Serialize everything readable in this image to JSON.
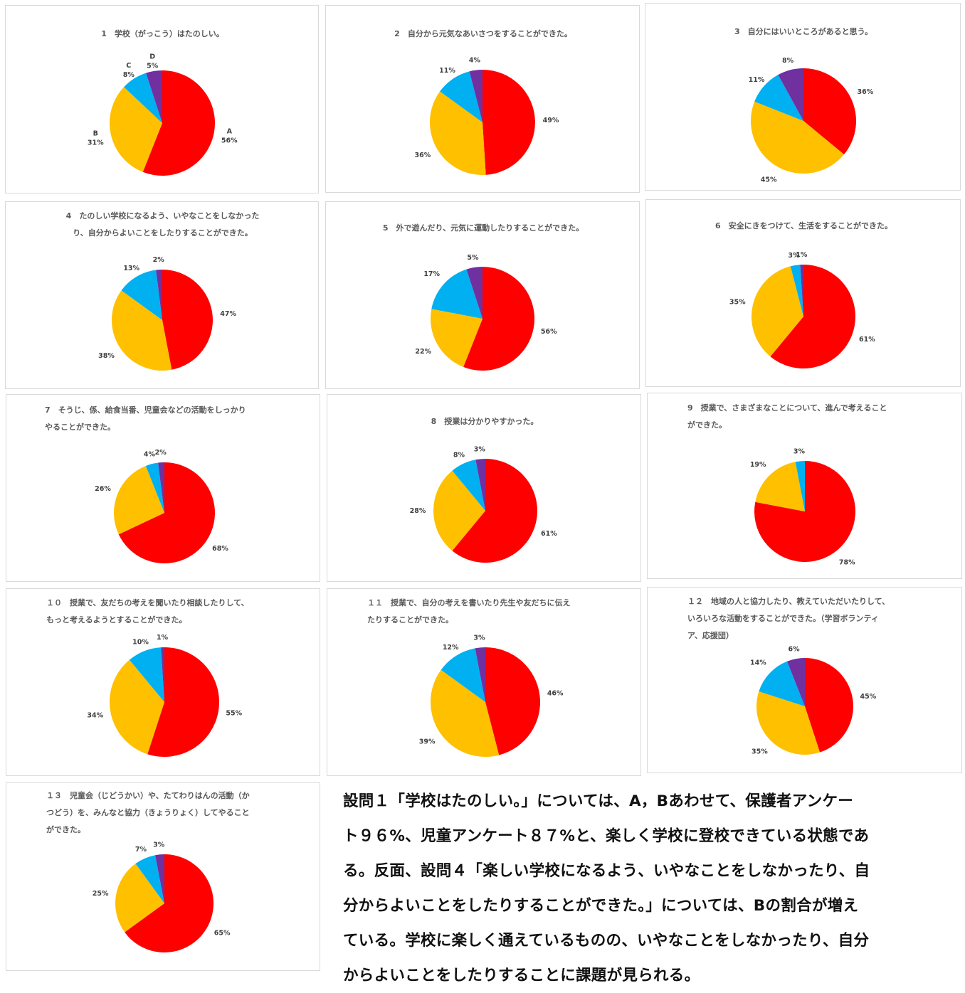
{
  "colors": {
    "A": "#ff0000",
    "B": "#ffc000",
    "C": "#00b0f0",
    "D": "#7030a0"
  },
  "chart_data": [
    {
      "type": "pie",
      "title_lines": [
        "1　学校（がっこう）はたのしい。"
      ],
      "categories": [
        "A",
        "B",
        "C",
        "D"
      ],
      "values": [
        56,
        31,
        8,
        5
      ],
      "labels": [
        "A\n56%",
        "B\n31%",
        "C\n8%",
        "D\n5%"
      ]
    },
    {
      "type": "pie",
      "title_lines": [
        "2　自分から元気なあいさつをすることができた。"
      ],
      "categories": [
        "A",
        "B",
        "C",
        "D"
      ],
      "values": [
        49,
        36,
        11,
        4
      ],
      "labels": [
        "49%",
        "36%",
        "11%",
        "4%"
      ]
    },
    {
      "type": "pie",
      "title_lines": [
        "3　自分にはいいところがあると思う。"
      ],
      "categories": [
        "A",
        "B",
        "C",
        "D"
      ],
      "values": [
        36,
        45,
        11,
        8
      ],
      "labels": [
        "36%",
        "45%",
        "11%",
        "8%"
      ]
    },
    {
      "type": "pie",
      "title_lines": [
        "4　たのしい学校になるよう、いやなことをしなかった",
        "り、自分からよいことをしたりすることができた。"
      ],
      "categories": [
        "A",
        "B",
        "C",
        "D"
      ],
      "values": [
        47,
        38,
        13,
        2
      ],
      "labels": [
        "47%",
        "38%",
        "13%",
        "2%"
      ]
    },
    {
      "type": "pie",
      "title_lines": [
        "5　外で遊んだり、元気に運動したりすることができた。"
      ],
      "categories": [
        "A",
        "B",
        "C",
        "D"
      ],
      "values": [
        56,
        22,
        17,
        5
      ],
      "labels": [
        "56%",
        "22%",
        "17%",
        "5%"
      ]
    },
    {
      "type": "pie",
      "title_lines": [
        "6　安全にきをつけて、生活をすることができた。"
      ],
      "categories": [
        "A",
        "B",
        "C",
        "D"
      ],
      "values": [
        61,
        35,
        3,
        1
      ],
      "labels": [
        "61%",
        "35%",
        "3%",
        "1%"
      ]
    },
    {
      "type": "pie",
      "title_lines": [
        "7　そうじ、係、給食当番、児童会などの活動をしっかり",
        "やることができた。"
      ],
      "categories": [
        "A",
        "B",
        "C",
        "D"
      ],
      "values": [
        68,
        26,
        4,
        2
      ],
      "labels": [
        "68%",
        "26%",
        "4%",
        "2%"
      ]
    },
    {
      "type": "pie",
      "title_lines": [
        "8　授業は分かりやすかった。"
      ],
      "categories": [
        "A",
        "B",
        "C",
        "D"
      ],
      "values": [
        61,
        28,
        8,
        3
      ],
      "labels": [
        "61%",
        "28%",
        "8%",
        "3%"
      ]
    },
    {
      "type": "pie",
      "title_lines": [
        "9　授業で、さまざまなことについて、進んで考えること",
        "ができた。"
      ],
      "categories": [
        "A",
        "B",
        "C",
        "D"
      ],
      "values": [
        78,
        19,
        3,
        0
      ],
      "labels": [
        "78%",
        "19%",
        "3%",
        ""
      ]
    },
    {
      "type": "pie",
      "title_lines": [
        "１０　授業で、友だちの考えを聞いたり相談したりして、",
        "もっと考えるようとすることができた。"
      ],
      "categories": [
        "A",
        "B",
        "C",
        "D"
      ],
      "values": [
        55,
        34,
        10,
        1
      ],
      "labels": [
        "55%",
        "34%",
        "10%",
        "1%"
      ]
    },
    {
      "type": "pie",
      "title_lines": [
        "１１　授業で、自分の考えを書いたり先生や友だちに伝え",
        "たりすることができた。"
      ],
      "categories": [
        "A",
        "B",
        "C",
        "D"
      ],
      "values": [
        46,
        39,
        12,
        3
      ],
      "labels": [
        "46%",
        "39%",
        "12%",
        "3%"
      ]
    },
    {
      "type": "pie",
      "title_lines": [
        "１２　地域の人と協力したり、教えていただいたりして、",
        "いろいろな活動をすることができた。（学習ボランティ",
        "ア、応援団）"
      ],
      "categories": [
        "A",
        "B",
        "C",
        "D"
      ],
      "values": [
        45,
        35,
        14,
        6
      ],
      "labels": [
        "45%",
        "35%",
        "14%",
        "6%"
      ]
    },
    {
      "type": "pie",
      "title_lines": [
        "１３　児童会（じどうかい）や、たてわりはんの活動（か",
        "つどう）を、みんなと協力（きょうりょく）してやること",
        "ができた。"
      ],
      "categories": [
        "A",
        "B",
        "C",
        "D"
      ],
      "values": [
        65,
        25,
        7,
        3
      ],
      "labels": [
        "65%",
        "25%",
        "7%",
        "3%"
      ]
    }
  ],
  "summary_lines": [
    "設問１「学校はたのしい。」については、A，Bあわせて、保護者アンケー",
    "ト９６%、児童アンケート８７%と、楽しく学校に登校できている状態であ",
    "る。反面、設問４「楽しい学校になるよう、いやなことをしなかったり、自",
    "分からよいことをしたりすることができた。」については、Bの割合が増え",
    "ている。学校に楽しく通えているものの、いやなことをしなかったり、自分",
    "からよいことをしたりすることに課題が見られる。"
  ]
}
